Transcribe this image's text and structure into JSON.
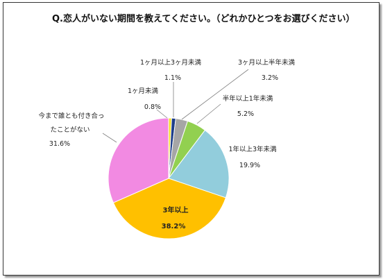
{
  "chart_data": {
    "type": "pie",
    "title": "Q.恋人がいない期間を教えてください。（どれかひとつをお選びください）",
    "start_angle_deg": 0,
    "direction": "clockwise",
    "slices": [
      {
        "label": "1ヶ月未満",
        "value": 0.8,
        "value_label": "0.8%",
        "color": "#f5e22a"
      },
      {
        "label": "1ヶ月以上3ヶ月未満",
        "value": 1.1,
        "value_label": "1.1%",
        "color": "#1f3f8a"
      },
      {
        "label": "3ヶ月以上半年未満",
        "value": 3.2,
        "value_label": "3.2%",
        "color": "#a6a6a6"
      },
      {
        "label": "半年以上1年未満",
        "value": 5.2,
        "value_label": "5.2%",
        "color": "#92d050"
      },
      {
        "label": "1年以上3年未満",
        "value": 19.9,
        "value_label": "19.9%",
        "color": "#92cddc"
      },
      {
        "label": "3年以上",
        "value": 38.2,
        "value_label": "38.2%",
        "color": "#ffc000"
      },
      {
        "label": "今まで誰とも付き合ったことがない",
        "label_lines": [
          "今まで誰とも付き合っ",
          "たことがない"
        ],
        "value": 31.6,
        "value_label": "31.6%",
        "color": "#f28ae2"
      }
    ]
  }
}
